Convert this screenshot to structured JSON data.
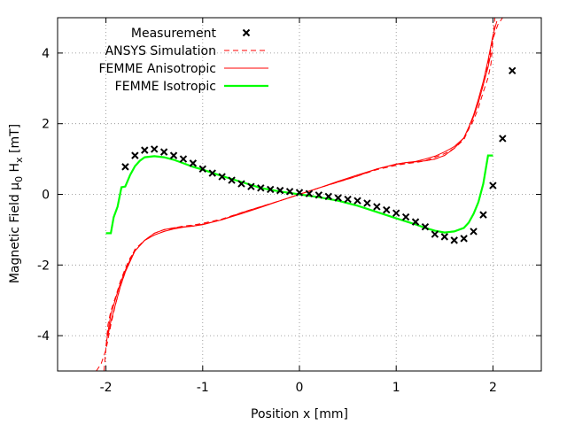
{
  "chart_data": {
    "type": "line",
    "xlabel": "Position x [mm]",
    "ylabel": {
      "prefix": "Magnetic Field μ",
      "sub1": "0",
      "mid": " H",
      "sub2": "x",
      "suffix": " [mT]"
    },
    "xlim": [
      -2.5,
      2.5
    ],
    "ylim": [
      -5,
      5
    ],
    "xticks": [
      -2,
      -1,
      0,
      1,
      2
    ],
    "yticks": [
      -4,
      -2,
      0,
      2,
      4
    ],
    "grid": true,
    "legend_position": "top-left",
    "series": [
      {
        "name": "Measurement",
        "style": "markers",
        "color": "#000000",
        "x": [
          -1.8,
          -1.7,
          -1.6,
          -1.5,
          -1.4,
          -1.3,
          -1.2,
          -1.1,
          -1.0,
          -0.9,
          -0.8,
          -0.7,
          -0.6,
          -0.5,
          -0.4,
          -0.3,
          -0.2,
          -0.1,
          0.0,
          0.1,
          0.2,
          0.3,
          0.4,
          0.5,
          0.6,
          0.7,
          0.8,
          0.9,
          1.0,
          1.1,
          1.2,
          1.3,
          1.4,
          1.5,
          1.6,
          1.7,
          1.8,
          1.9,
          2.0,
          2.1,
          2.2
        ],
        "y": [
          0.78,
          1.1,
          1.25,
          1.28,
          1.2,
          1.1,
          1.0,
          0.88,
          0.72,
          0.6,
          0.5,
          0.4,
          0.3,
          0.22,
          0.18,
          0.14,
          0.11,
          0.08,
          0.05,
          0.02,
          -0.02,
          -0.06,
          -0.1,
          -0.14,
          -0.18,
          -0.25,
          -0.35,
          -0.44,
          -0.53,
          -0.64,
          -0.78,
          -0.92,
          -1.13,
          -1.2,
          -1.3,
          -1.25,
          -1.05,
          -0.58,
          0.25,
          1.58,
          3.5
        ]
      },
      {
        "name": "ANSYS Simulation",
        "style": "dashed",
        "color": "#ff0000",
        "branches": [
          {
            "x": [
              -2.02,
              -1.98,
              -1.95,
              -1.9,
              -1.85,
              -1.8,
              -1.75,
              -1.7,
              -1.6,
              -1.5,
              -1.4,
              -1.3,
              -1.2,
              -1.1,
              -1.0,
              -0.8,
              -0.6,
              -0.4,
              -0.2,
              0.0,
              0.2,
              0.4,
              0.6,
              0.8,
              1.0,
              1.1,
              1.2,
              1.3,
              1.4,
              1.5,
              1.6,
              1.7,
              1.75,
              1.8,
              1.85,
              1.9,
              1.95,
              2.0,
              2.05,
              2.1
            ],
            "y": [
              -5.0,
              -3.7,
              -3.3,
              -2.9,
              -2.45,
              -2.1,
              -1.8,
              -1.6,
              -1.3,
              -1.1,
              -1.0,
              -0.95,
              -0.92,
              -0.88,
              -0.85,
              -0.72,
              -0.52,
              -0.35,
              -0.18,
              0.0,
              0.18,
              0.35,
              0.52,
              0.7,
              0.82,
              0.87,
              0.9,
              0.95,
              1.05,
              1.15,
              1.3,
              1.55,
              1.85,
              2.2,
              2.6,
              3.1,
              3.7,
              4.4,
              4.8,
              5.0
            ]
          },
          {
            "x": [
              -2.1,
              -2.05,
              -2.0,
              -1.95,
              -1.9,
              -1.85,
              -1.8,
              -1.75,
              -1.7,
              -1.6,
              -1.5,
              -1.4,
              -1.3,
              -1.2,
              -1.1,
              -1.0,
              -0.8,
              -0.6,
              -0.4,
              -0.2,
              0.0,
              0.2,
              0.4,
              0.6,
              0.8,
              1.0,
              1.1,
              1.2,
              1.3,
              1.4,
              1.5,
              1.6,
              1.7,
              1.75,
              1.8,
              1.85,
              1.9,
              1.95,
              1.98,
              2.02
            ],
            "y": [
              -5.0,
              -4.8,
              -4.4,
              -3.7,
              -3.1,
              -2.6,
              -2.2,
              -1.85,
              -1.55,
              -1.3,
              -1.15,
              -1.05,
              -0.95,
              -0.9,
              -0.87,
              -0.82,
              -0.7,
              -0.52,
              -0.35,
              -0.18,
              0.0,
              0.18,
              0.35,
              0.52,
              0.72,
              0.85,
              0.88,
              0.92,
              0.95,
              1.0,
              1.1,
              1.3,
              1.6,
              1.85,
              2.1,
              2.45,
              2.9,
              3.3,
              3.7,
              5.0
            ]
          }
        ]
      },
      {
        "name": "FEMME Anisotropic",
        "style": "solid-thin",
        "color": "#ff0000",
        "branches": [
          {
            "x": [
              -2.0,
              -1.98,
              -1.95,
              -1.9,
              -1.85,
              -1.8,
              -1.75,
              -1.7,
              -1.6,
              -1.5,
              -1.4,
              -1.3,
              -1.2,
              -1.1,
              -1.0,
              -0.8,
              -0.6,
              -0.4,
              -0.2,
              0.0,
              0.2,
              0.4,
              0.6,
              0.8,
              1.0,
              1.1,
              1.2,
              1.3,
              1.4,
              1.5,
              1.6,
              1.7,
              1.75,
              1.8,
              1.85,
              1.9,
              1.95,
              2.0,
              2.04
            ],
            "y": [
              -4.3,
              -3.9,
              -3.4,
              -2.95,
              -2.5,
              -2.15,
              -1.85,
              -1.6,
              -1.3,
              -1.1,
              -1.0,
              -0.95,
              -0.92,
              -0.9,
              -0.86,
              -0.72,
              -0.52,
              -0.35,
              -0.18,
              0.0,
              0.18,
              0.37,
              0.55,
              0.72,
              0.85,
              0.9,
              0.93,
              1.0,
              1.08,
              1.2,
              1.35,
              1.6,
              1.9,
              2.25,
              2.7,
              3.2,
              3.8,
              4.5,
              4.9
            ]
          },
          {
            "x": [
              -1.98,
              -1.95,
              -1.9,
              -1.85,
              -1.8,
              -1.75,
              -1.7,
              -1.6,
              -1.5,
              -1.4,
              -1.3,
              -1.2,
              -1.1,
              -1.0,
              -0.8,
              -0.6,
              -0.4,
              -0.2,
              0.0,
              0.2,
              0.4,
              0.6,
              0.8,
              1.0,
              1.1,
              1.2,
              1.3,
              1.4,
              1.5,
              1.6,
              1.7,
              1.75,
              1.8,
              1.85,
              1.9,
              1.95,
              1.98
            ],
            "y": [
              -4.0,
              -3.6,
              -3.1,
              -2.6,
              -2.2,
              -1.9,
              -1.6,
              -1.3,
              -1.15,
              -1.05,
              -0.98,
              -0.93,
              -0.9,
              -0.85,
              -0.72,
              -0.55,
              -0.37,
              -0.18,
              0.0,
              0.18,
              0.35,
              0.52,
              0.72,
              0.86,
              0.9,
              0.92,
              0.95,
              1.0,
              1.1,
              1.3,
              1.6,
              1.9,
              2.2,
              2.6,
              3.1,
              3.6,
              4.0
            ]
          }
        ]
      },
      {
        "name": "FEMME Isotropic",
        "style": "solid-thick",
        "color": "#00ff00",
        "branches": [
          {
            "x": [
              -2.0,
              -1.95,
              -1.92,
              -1.88,
              -1.84,
              -1.8,
              -1.75,
              -1.7,
              -1.65,
              -1.6,
              -1.5,
              -1.4,
              -1.3,
              -1.2,
              -1.1,
              -1.0,
              -0.8,
              -0.6,
              -0.4,
              -0.2,
              0.0,
              0.2,
              0.4,
              0.6,
              0.8,
              1.0,
              1.2,
              1.3,
              1.4,
              1.5,
              1.6,
              1.7,
              1.75,
              1.8,
              1.85,
              1.9,
              1.95,
              2.0
            ],
            "y": [
              -1.1,
              -1.1,
              -0.65,
              -0.35,
              0.2,
              0.22,
              0.55,
              0.8,
              0.95,
              1.05,
              1.08,
              1.05,
              0.98,
              0.88,
              0.78,
              0.7,
              0.52,
              0.35,
              0.18,
              0.08,
              0.0,
              -0.08,
              -0.18,
              -0.32,
              -0.5,
              -0.68,
              -0.85,
              -0.95,
              -1.03,
              -1.08,
              -1.05,
              -0.95,
              -0.8,
              -0.55,
              -0.22,
              0.3,
              1.1,
              1.1
            ]
          }
        ]
      }
    ]
  }
}
